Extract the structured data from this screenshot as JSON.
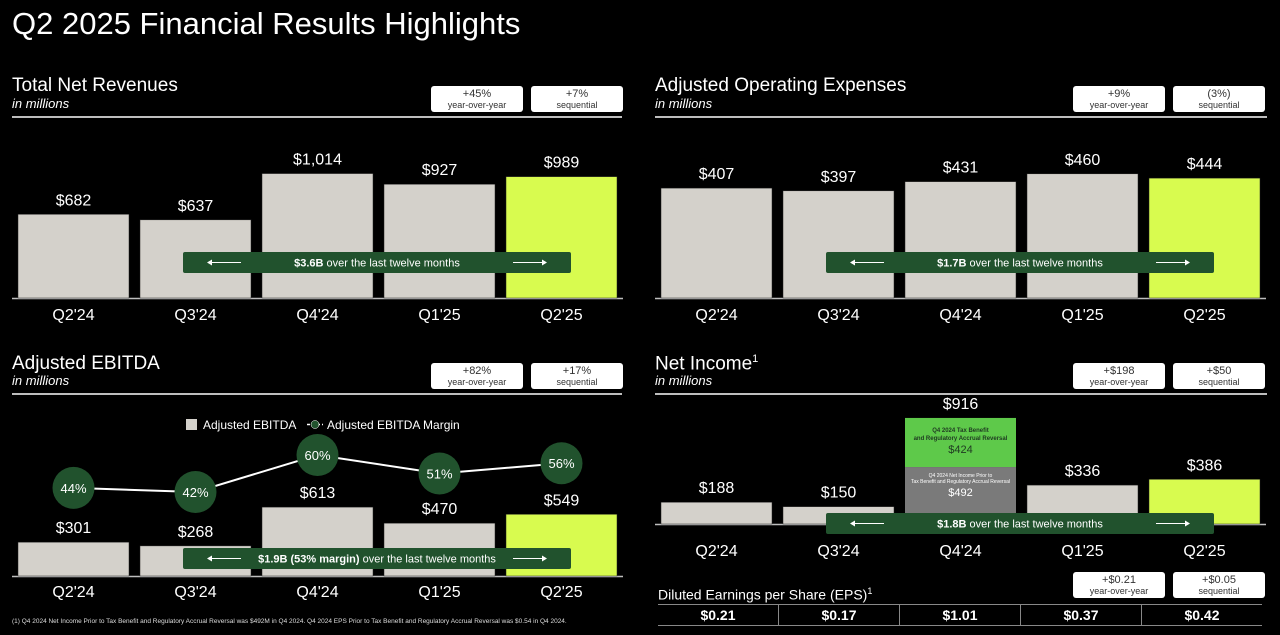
{
  "page_title": "Q2 2025 Financial Results Highlights",
  "footnote": "(1) Q4 2024 Net Income Prior to Tax Benefit and Regulatory Accrual Reversal was $492M in Q4 2024. Q4 2024 EPS Prior to Tax Benefit and Regulatory Accrual Reversal was $0.54 in Q4 2024.",
  "colors": {
    "bar_gray": "#d4d1cb",
    "bar_highlight": "#d8fb4f",
    "dark_green": "#21522d",
    "bright_green": "#5ec94a",
    "badge_bg": "#ffffff"
  },
  "chart_data": [
    {
      "id": "revenue",
      "type": "bar",
      "title": "Total Net Revenues",
      "subtitle": "in millions",
      "badges": [
        {
          "value": "+45%",
          "label": "year-over-year"
        },
        {
          "value": "+7%",
          "label": "sequential"
        }
      ],
      "categories": [
        "Q2'24",
        "Q3'24",
        "Q4'24",
        "Q1'25",
        "Q2'25"
      ],
      "values": [
        682,
        637,
        1014,
        927,
        989
      ],
      "value_labels": [
        "$682",
        "$637",
        "$1,014",
        "$927",
        "$989"
      ],
      "highlight_index": 4,
      "banner": {
        "bold": "$3.6B",
        "text": " over the last twelve months"
      },
      "ylim": [
        0,
        1100
      ]
    },
    {
      "id": "opex",
      "type": "bar",
      "title": "Adjusted Operating Expenses",
      "subtitle": "in millions",
      "badges": [
        {
          "value": "+9%",
          "label": "year-over-year"
        },
        {
          "value": "(3%)",
          "label": "sequential"
        }
      ],
      "categories": [
        "Q2'24",
        "Q3'24",
        "Q4'24",
        "Q1'25",
        "Q2'25"
      ],
      "values": [
        407,
        397,
        431,
        460,
        444
      ],
      "value_labels": [
        "$407",
        "$397",
        "$431",
        "$460",
        "$444"
      ],
      "highlight_index": 4,
      "banner": {
        "bold": "$1.7B",
        "text": " over the last twelve months"
      },
      "ylim": [
        0,
        500
      ]
    },
    {
      "id": "ebitda",
      "type": "bar",
      "title": "Adjusted EBITDA",
      "subtitle": "in millions",
      "badges": [
        {
          "value": "+82%",
          "label": "year-over-year"
        },
        {
          "value": "+17%",
          "label": "sequential"
        }
      ],
      "categories": [
        "Q2'24",
        "Q3'24",
        "Q4'24",
        "Q1'25",
        "Q2'25"
      ],
      "values": [
        301,
        268,
        613,
        470,
        549
      ],
      "value_labels": [
        "$301",
        "$268",
        "$613",
        "$470",
        "$549"
      ],
      "highlight_index": 4,
      "series": [
        {
          "name": "Adjusted EBITDA Margin",
          "values": [
            44,
            42,
            60,
            51,
            56
          ],
          "labels": [
            "44%",
            "42%",
            "60%",
            "51%",
            "56%"
          ]
        }
      ],
      "legend": [
        "Adjusted EBITDA",
        "Adjusted EBITDA Margin"
      ],
      "banner": {
        "bold": "$1.9B (53% margin)",
        "text": " over the last twelve months"
      },
      "ylim": [
        0,
        1050
      ]
    },
    {
      "id": "net_income",
      "type": "bar",
      "title": "Net Income",
      "title_sup": "1",
      "subtitle": "in millions",
      "badges": [
        {
          "value": "+$198",
          "label": "year-over-year"
        },
        {
          "value": "+$50",
          "label": "sequential"
        }
      ],
      "categories": [
        "Q2'24",
        "Q3'24",
        "Q4'24",
        "Q1'25",
        "Q2'25"
      ],
      "values": [
        188,
        150,
        916,
        336,
        386
      ],
      "value_labels": [
        "$188",
        "$150",
        "$916",
        "$336",
        "$386"
      ],
      "highlight_index": 4,
      "stack": {
        "index": 2,
        "segments": [
          {
            "label": "Q4 2024 Net Income Prior to Tax Benefit and Regulatory Accrual Reversal",
            "value": 492,
            "value_label": "$492"
          },
          {
            "label": "Q4 2024 Tax Benefit and Regulatory Accrual Reversal",
            "value": 424,
            "value_label": "$424"
          }
        ]
      },
      "banner": {
        "bold": "$1.8B",
        "text": " over the last twelve months"
      },
      "ylim": [
        0,
        950
      ]
    }
  ],
  "eps": {
    "title": "Diluted Earnings per Share (EPS)",
    "title_sup": "1",
    "badges": [
      {
        "value": "+$0.21",
        "label": "year-over-year"
      },
      {
        "value": "+$0.05",
        "label": "sequential"
      }
    ],
    "values": [
      "$0.21",
      "$0.17",
      "$1.01",
      "$0.37",
      "$0.42"
    ]
  }
}
